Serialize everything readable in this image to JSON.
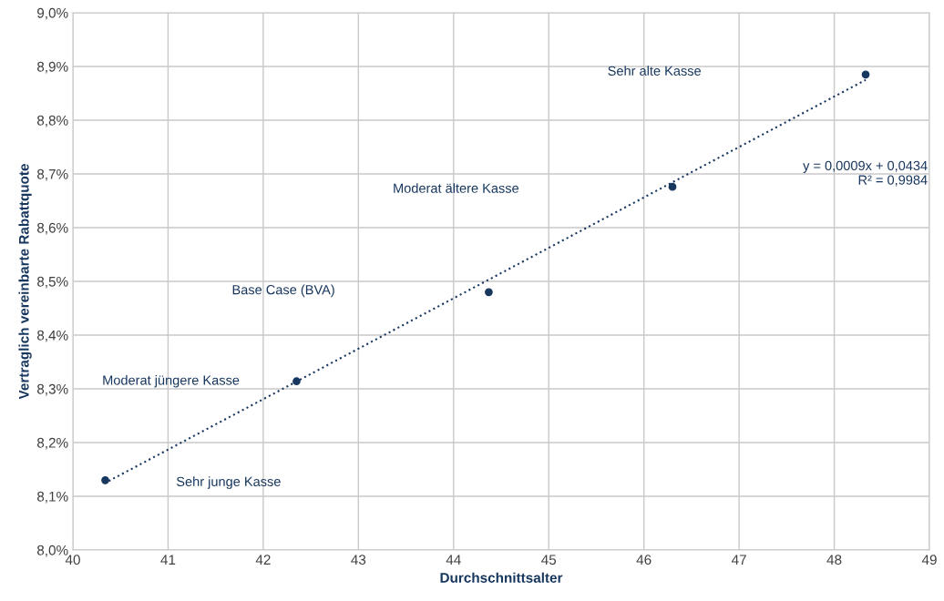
{
  "chart_data": {
    "type": "scatter",
    "xlabel": "Durchschnittsalter",
    "ylabel": "Vertraglich vereinbarte Rabattquote",
    "xlim": [
      40,
      49
    ],
    "xticks": [
      40,
      41,
      42,
      43,
      44,
      45,
      46,
      47,
      48,
      49
    ],
    "ylim": [
      8.0,
      9.0
    ],
    "yticks": [
      {
        "value": 8.0,
        "label": "8,0%"
      },
      {
        "value": 8.1,
        "label": "8,1%"
      },
      {
        "value": 8.2,
        "label": "8,2%"
      },
      {
        "value": 8.3,
        "label": "8,3%"
      },
      {
        "value": 8.4,
        "label": "8,4%"
      },
      {
        "value": 8.5,
        "label": "8,5%"
      },
      {
        "value": 8.6,
        "label": "8,6%"
      },
      {
        "value": 8.7,
        "label": "8,7%"
      },
      {
        "value": 8.8,
        "label": "8,8%"
      },
      {
        "value": 8.9,
        "label": "8,9%"
      },
      {
        "value": 9.0,
        "label": "9,0%"
      }
    ],
    "grid": true,
    "marker": "circle",
    "series": [
      {
        "color": "#17375e",
        "x": [
          40.34,
          42.35,
          44.37,
          46.3,
          48.33
        ],
        "values": [
          8.13,
          8.314,
          8.48,
          8.676,
          8.885
        ]
      },
      {
        "type": "line",
        "color": "#17375e",
        "line_style": "dotted",
        "marker": "none",
        "x": [
          40.33,
          48.33
        ],
        "values": [
          8.124,
          8.875
        ]
      }
    ],
    "annotations": [
      "Sehr junge Kasse",
      "Moderat jüngere Kasse",
      "Base Case (BVA)",
      "Moderat ältere Kasse",
      "Sehr alte Kasse",
      "y = 0,0009x + 0,0434\nR² = 0,9984"
    ]
  }
}
